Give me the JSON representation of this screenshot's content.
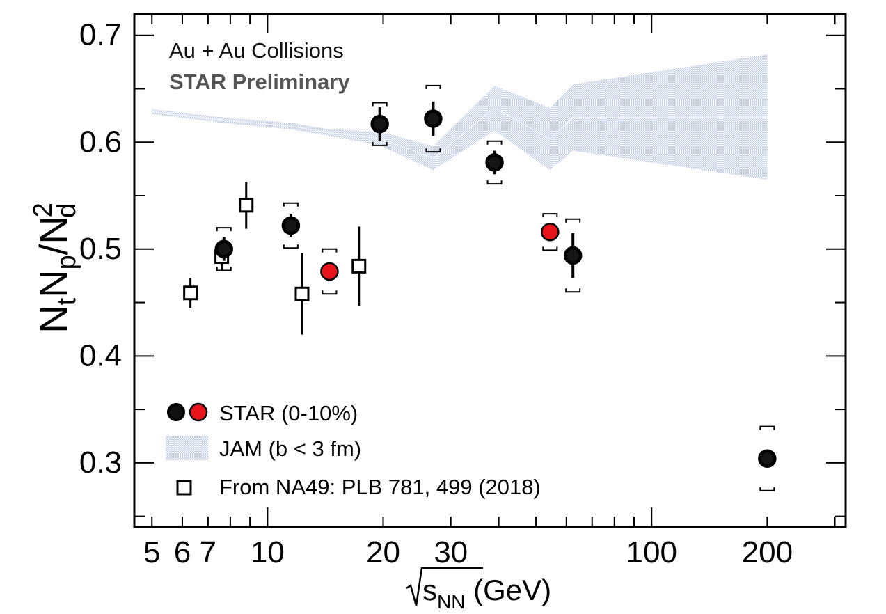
{
  "chart_data": {
    "type": "scatter",
    "title": "",
    "annotations": {
      "line1": "Au + Au Collisions",
      "line2": "STAR Preliminary"
    },
    "xlabel": {
      "root": "s",
      "sub": "NN",
      "unit": " (GeV)"
    },
    "ylabel": {
      "N1": "N",
      "s1": "t",
      "N2": "N",
      "s2": "p",
      "slash": "/N",
      "sup": "2",
      "s3": "d"
    },
    "xscale": "log",
    "xlim": [
      4.5,
      320
    ],
    "ylim": [
      0.24,
      0.72
    ],
    "x_ticks": [
      5,
      6,
      7,
      10,
      20,
      30,
      100,
      200
    ],
    "x_tick_labels": [
      "5",
      "6",
      "7",
      "10",
      "20",
      "30",
      "100",
      "200"
    ],
    "y_ticks": [
      0.3,
      0.4,
      0.5,
      0.6,
      0.7
    ],
    "y_tick_labels": [
      "0.3",
      "0.4",
      "0.5",
      "0.6",
      "0.7"
    ],
    "legend_position": "bottom-left",
    "legend": {
      "star": "STAR (0-10%)",
      "jam": "JAM (b < 3 fm)",
      "na49": "From NA49: PLB 781, 499 (2018)"
    },
    "series": [
      {
        "name": "STAR (0-10%)",
        "marker": "filled-circle",
        "color": "#000000",
        "points": [
          {
            "x": 7.7,
            "y": 0.5,
            "stat": 0.011,
            "sys": 0.02
          },
          {
            "x": 11.5,
            "y": 0.522,
            "stat": 0.011,
            "sys": 0.021
          },
          {
            "x": 19.6,
            "y": 0.617,
            "stat": 0.016,
            "sys": 0.02
          },
          {
            "x": 27,
            "y": 0.622,
            "stat": 0.016,
            "sys": 0.031
          },
          {
            "x": 39,
            "y": 0.581,
            "stat": 0.011,
            "sys": 0.02
          },
          {
            "x": 62.4,
            "y": 0.494,
            "stat": 0.021,
            "sys": 0.034
          },
          {
            "x": 200,
            "y": 0.304,
            "stat": 0.003,
            "sys": 0.03
          }
        ]
      },
      {
        "name": "STAR (0-10%)",
        "marker": "filled-circle",
        "color": "#e8141b",
        "points": [
          {
            "x": 14.5,
            "y": 0.479,
            "stat": 0.006,
            "sys": 0.021
          },
          {
            "x": 54.4,
            "y": 0.516,
            "stat": 0.005,
            "sys": 0.017
          }
        ]
      },
      {
        "name": "From NA49: PLB 781, 499 (2018)",
        "marker": "open-square",
        "color": "#000000",
        "points": [
          {
            "x": 6.3,
            "y": 0.459,
            "err": 0.014
          },
          {
            "x": 7.6,
            "y": 0.493,
            "err": 0.013
          },
          {
            "x": 8.8,
            "y": 0.541,
            "err": 0.022
          },
          {
            "x": 12.3,
            "y": 0.458,
            "err": 0.038
          },
          {
            "x": 17.3,
            "y": 0.484,
            "err": 0.037
          }
        ]
      },
      {
        "name": "JAM (b < 3 fm)",
        "type": "band",
        "color": "#9fb2de",
        "x": [
          5,
          7.7,
          11.5,
          14.5,
          19.6,
          27,
          39,
          54.4,
          62.4,
          200
        ],
        "lower": [
          0.626,
          0.618,
          0.612,
          0.606,
          0.597,
          0.574,
          0.611,
          0.574,
          0.592,
          0.565
        ],
        "upper": [
          0.631,
          0.623,
          0.618,
          0.612,
          0.61,
          0.596,
          0.653,
          0.632,
          0.654,
          0.682
        ]
      }
    ]
  }
}
